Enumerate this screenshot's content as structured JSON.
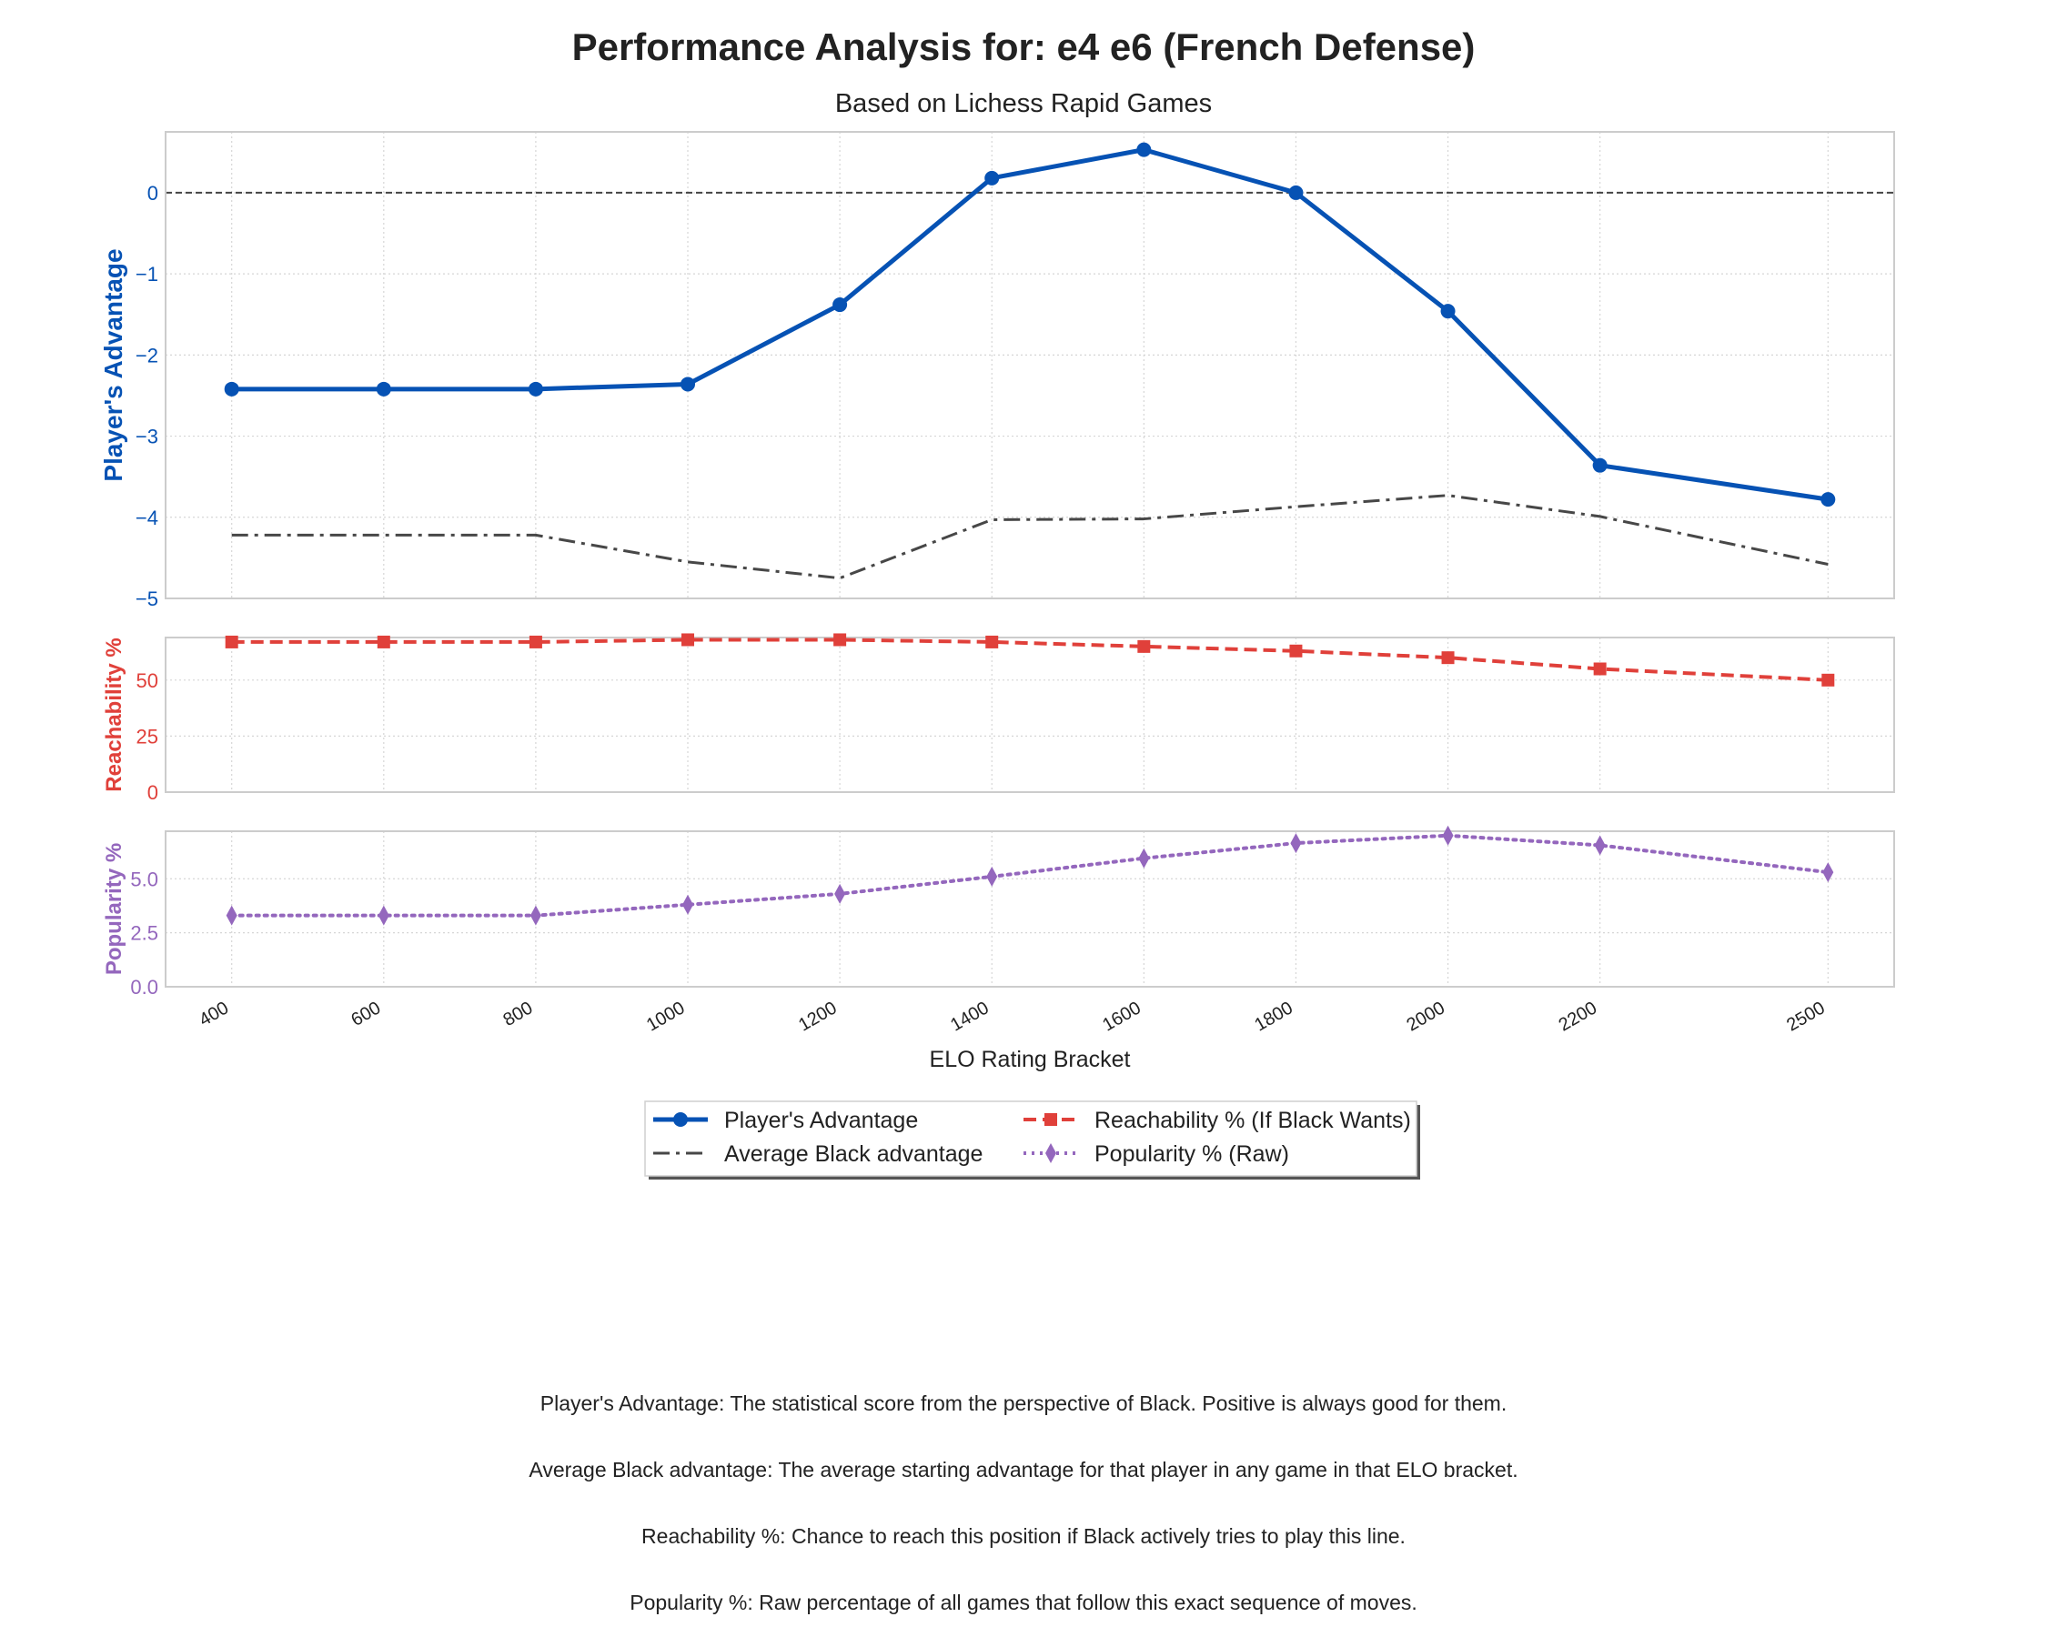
{
  "title": "Performance Analysis for: e4 e6 (French Defense)",
  "subtitle": "Based on Lichess Rapid Games",
  "xlabel": "ELO Rating Bracket",
  "colors": {
    "advantage": "#0652b4",
    "average": "#474747",
    "reachability": "#e0403a",
    "popularity": "#9467bd",
    "grid": "#d6d6d6",
    "frame": "#cccccc"
  },
  "notes": [
    "Player's Advantage: The statistical score from the perspective of Black. Positive is always good for them.",
    "Average Black advantage: The average starting advantage for that player in any game in that ELO bracket.",
    "Reachability %: Chance to reach this position if Black actively tries to play this line.",
    "Popularity %: Raw percentage of all games that follow this exact sequence of moves."
  ],
  "chart_data": {
    "type": "line",
    "x": [
      400,
      600,
      800,
      1000,
      1200,
      1400,
      1600,
      1800,
      2000,
      2200,
      2500
    ],
    "xlabel": "ELO Rating Bracket",
    "legend": {
      "placement": "below plot, center",
      "columns": 2
    },
    "grid": true,
    "panels": [
      {
        "ylabel": "Player's Advantage",
        "ylim": [
          -5,
          0.75
        ],
        "yticks": [
          0,
          -1,
          -2,
          -3,
          -4,
          -5
        ],
        "ytick_labels": [
          "0",
          "−1",
          "−2",
          "−3",
          "−4",
          "−5"
        ],
        "reference_line": 0,
        "series": [
          {
            "name": "Player's Advantage",
            "style": "solid",
            "marker": "circle",
            "color": "#0652b4",
            "values": [
              -2.42,
              -2.42,
              -2.42,
              -2.36,
              -1.38,
              0.18,
              0.53,
              0.0,
              -1.46,
              -3.36,
              -3.78
            ]
          },
          {
            "name": "Average Black advantage",
            "style": "dashdot",
            "marker": "none",
            "color": "#474747",
            "values": [
              -4.22,
              -4.22,
              -4.22,
              -4.55,
              -4.75,
              -4.03,
              -4.02,
              -3.87,
              -3.73,
              -3.99,
              -4.58
            ]
          }
        ]
      },
      {
        "ylabel": "Reachability %",
        "ylim": [
          0,
          69
        ],
        "yticks": [
          0,
          25,
          50
        ],
        "ytick_labels": [
          "0",
          "25",
          "50"
        ],
        "series": [
          {
            "name": "Reachability % (If Black Wants)",
            "style": "dashed",
            "marker": "square",
            "color": "#e0403a",
            "values": [
              67,
              67,
              67,
              68,
              68,
              67,
              65,
              63,
              60,
              55,
              50
            ]
          }
        ]
      },
      {
        "ylabel": "Popularity %",
        "ylim": [
          0,
          7.2
        ],
        "yticks": [
          0.0,
          2.5,
          5.0
        ],
        "ytick_labels": [
          "0.0",
          "2.5",
          "5.0"
        ],
        "series": [
          {
            "name": "Popularity % (Raw)",
            "style": "dotted",
            "marker": "thin_diamond",
            "color": "#9467bd",
            "values": [
              3.3,
              3.3,
              3.3,
              3.8,
              4.3,
              5.1,
              5.95,
              6.65,
              7.0,
              6.55,
              5.3
            ]
          }
        ]
      }
    ]
  }
}
